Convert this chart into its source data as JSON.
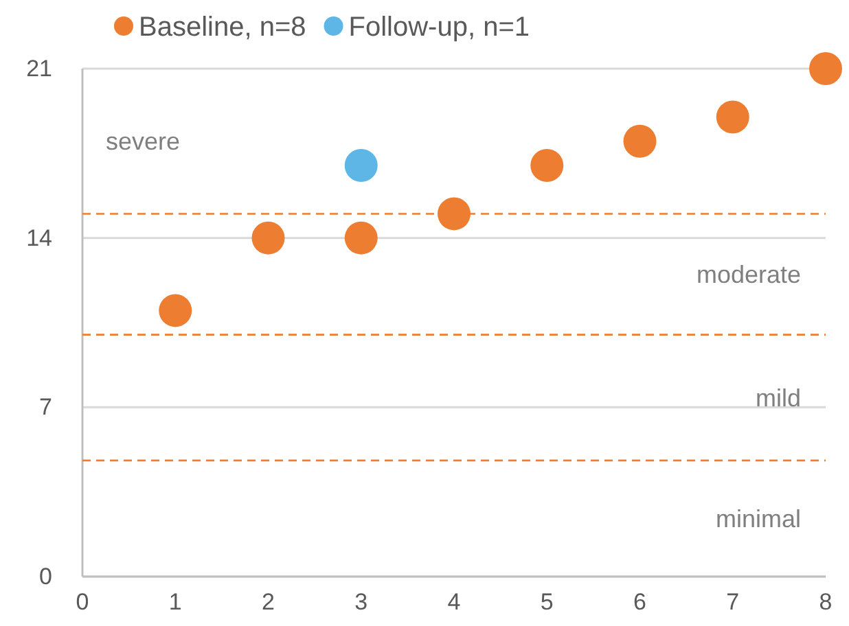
{
  "chart_data": {
    "type": "scatter",
    "series": [
      {
        "name": "Baseline, n=8",
        "color": "#ed7d31",
        "x": [
          1,
          2,
          3,
          4,
          5,
          6,
          7,
          8
        ],
        "values": [
          11,
          14,
          14,
          15,
          17,
          18,
          19,
          21
        ]
      },
      {
        "name": "Follow-up, n=1",
        "color": "#5db6e6",
        "x": [
          3
        ],
        "values": [
          17
        ]
      }
    ],
    "xlim": [
      0,
      8
    ],
    "xticks": [
      0,
      1,
      2,
      3,
      4,
      5,
      6,
      7,
      8
    ],
    "ylim": [
      0,
      21
    ],
    "yticks": [
      0,
      7,
      14,
      21
    ],
    "grid": "y",
    "legend": "top left",
    "marker": "circle",
    "ref_lines": [
      {
        "axis": "y",
        "value": 15,
        "color": "#ed7d31",
        "line_style": "dashed"
      },
      {
        "axis": "y",
        "value": 10,
        "color": "#ed7d31",
        "line_style": "dashed"
      },
      {
        "axis": "y",
        "value": 4.8,
        "color": "#ed7d31",
        "line_style": "dashed"
      }
    ],
    "annotations": [
      "severe",
      "moderate",
      "mild",
      "minimal"
    ]
  }
}
